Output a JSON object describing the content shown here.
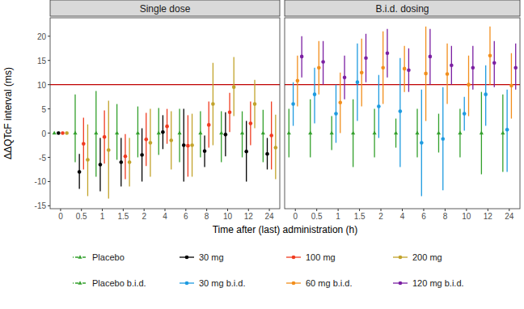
{
  "chart_data": {
    "type": "point_range",
    "x_label": "Time after (last) administration (h)",
    "y_label": "ΔΔQTcF interval (ms)",
    "categories": [
      "0",
      "0.5",
      "1",
      "1.5",
      "2",
      "4",
      "6",
      "8",
      "10",
      "12",
      "24"
    ],
    "ylim": [
      -15.6,
      23.8
    ],
    "yticks": [
      -15,
      -10,
      -5,
      0,
      5,
      10,
      15,
      20
    ],
    "grid": false,
    "legend": "bottom",
    "hline": {
      "value": 10,
      "color": "#c00000"
    },
    "panels": [
      {
        "title": "Single dose",
        "series": [
          {
            "name": "Placebo",
            "color": "#33a02c",
            "marker": "triangle",
            "line_style": "dotdash",
            "values": [
              0,
              0,
              0,
              0,
              0,
              0,
              0,
              0,
              0,
              0,
              0
            ],
            "lower": [
              0,
              -6,
              -9,
              -5.5,
              -5,
              -4.5,
              -6,
              -5,
              -6,
              -5,
              -6
            ],
            "upper": [
              0,
              8,
              8.7,
              6,
              5.5,
              5.2,
              5,
              4.5,
              4.5,
              4.5,
              4.8
            ]
          },
          {
            "name": "30 mg",
            "color": "#000000",
            "marker": "circle",
            "line_style": "solid",
            "values": [
              0,
              -8,
              -6.5,
              -6,
              -4.5,
              0.2,
              -2.5,
              -3.7,
              -0.3,
              -3.8,
              -4.3
            ],
            "lower": [
              0,
              -11.5,
              -12,
              -11,
              -10,
              -3.3,
              -10,
              -7,
              -4.8,
              -10,
              -7.5
            ],
            "upper": [
              0,
              -4.3,
              -1,
              -1,
              1,
              3.7,
              5,
              -0.5,
              4.3,
              2.5,
              -1
            ]
          },
          {
            "name": "100 mg",
            "color": "#f03b20",
            "marker": "circle",
            "line_style": "solid",
            "values": [
              0,
              -2.2,
              -0.8,
              -4.8,
              -1.3,
              1.4,
              -2.6,
              1.7,
              4.3,
              2,
              -0.5
            ],
            "lower": [
              0,
              -7.5,
              -6.3,
              -9.5,
              -6.8,
              -2.2,
              -9,
              -3,
              0.2,
              -2.5,
              -7.5
            ],
            "upper": [
              0,
              3.2,
              4.7,
              -0.2,
              4.2,
              5,
              3.7,
              6.5,
              8.3,
              6.5,
              6.5
            ]
          },
          {
            "name": "200 mg",
            "color": "#c2a32b",
            "marker": "circle",
            "line_style": "solid",
            "values": [
              0,
              -5.5,
              -3.5,
              -6,
              -2,
              -1.5,
              -2.5,
              6,
              9.5,
              6,
              -3
            ],
            "lower": [
              0,
              -13,
              -13.5,
              -11,
              -9,
              -7.5,
              -9,
              -2.5,
              3.5,
              1,
              -9.5
            ],
            "upper": [
              0,
              1.8,
              6.7,
              -1,
              5,
              4.5,
              4,
              14.5,
              15.7,
              11,
              3.8
            ]
          }
        ]
      },
      {
        "title": "B.i.d. dosing",
        "series": [
          {
            "name": "Placebo b.i.d.",
            "color": "#33a02c",
            "marker": "triangle",
            "line_style": "dotdash",
            "values": [
              0,
              0,
              0,
              0,
              0,
              0,
              0,
              0,
              0,
              0,
              0
            ],
            "lower": [
              -5,
              -5,
              -3.5,
              -7,
              -5,
              -3,
              -5,
              -4,
              -5,
              -8.5,
              -8
            ],
            "upper": [
              5,
              7,
              3.5,
              7,
              5,
              3,
              5,
              4,
              5,
              8.5,
              8
            ]
          },
          {
            "name": "30 mg b.i.d.",
            "color": "#1e9be0",
            "marker": "circle",
            "line_style": "solid",
            "values": [
              6,
              8,
              4,
              10.5,
              5.5,
              4.5,
              -2,
              -1.2,
              4,
              8,
              0.7
            ],
            "lower": [
              1.5,
              2,
              -2,
              2.5,
              -1,
              -7,
              -13,
              -11.8,
              0.5,
              1.5,
              -8
            ],
            "upper": [
              10.5,
              13.5,
              10,
              18.5,
              12,
              15.5,
              9,
              9.5,
              7.5,
              14,
              9
            ]
          },
          {
            "name": "60 mg b.i.d.",
            "color": "#f28e1c",
            "marker": "circle",
            "line_style": "solid",
            "values": [
              10.8,
              13.5,
              6.3,
              12.5,
              13.5,
              13.3,
              12.3,
              12.2,
              10,
              16,
              9.8
            ],
            "lower": [
              5.5,
              8,
              0,
              5.5,
              6,
              8.5,
              2.5,
              6,
              3.5,
              10,
              3
            ],
            "upper": [
              16,
              19,
              12.5,
              19.5,
              21,
              18,
              22,
              18.5,
              16,
              22,
              16.5
            ]
          },
          {
            "name": "120 mg b.i.d.",
            "color": "#7b1fa2",
            "marker": "circle",
            "line_style": "solid",
            "values": [
              15.8,
              14.7,
              11.5,
              15.5,
              16.5,
              13,
              15.8,
              14,
              13.5,
              14.5,
              13.5
            ],
            "lower": [
              11.5,
              10,
              7,
              10.5,
              11.5,
              8.5,
              10,
              10,
              9,
              9.5,
              9
            ],
            "upper": [
              20,
              19,
              16,
              20.5,
              21.5,
              17.5,
              21.5,
              18,
              18,
              19,
              18.5
            ]
          }
        ]
      }
    ]
  }
}
